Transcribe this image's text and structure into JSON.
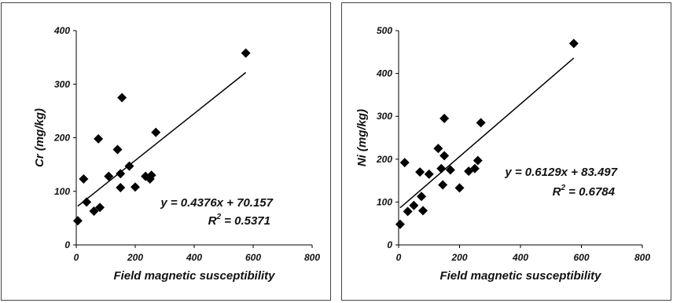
{
  "chart_data": [
    {
      "type": "scatter",
      "title": "",
      "xlabel": "Field magnetic susceptibility",
      "ylabel": "Cr (mg/kg)",
      "xlim": [
        0,
        800
      ],
      "ylim": [
        0,
        400
      ],
      "x_ticks": [
        "0",
        "200",
        "400",
        "600",
        "800"
      ],
      "y_ticks": [
        "0",
        "100",
        "200",
        "300",
        "400"
      ],
      "points": [
        {
          "x": 5,
          "y": 45
        },
        {
          "x": 25,
          "y": 123
        },
        {
          "x": 35,
          "y": 80
        },
        {
          "x": 60,
          "y": 63
        },
        {
          "x": 75,
          "y": 198
        },
        {
          "x": 80,
          "y": 70
        },
        {
          "x": 110,
          "y": 128
        },
        {
          "x": 140,
          "y": 178
        },
        {
          "x": 150,
          "y": 107
        },
        {
          "x": 150,
          "y": 133
        },
        {
          "x": 155,
          "y": 275
        },
        {
          "x": 180,
          "y": 147
        },
        {
          "x": 200,
          "y": 108
        },
        {
          "x": 235,
          "y": 128
        },
        {
          "x": 250,
          "y": 123
        },
        {
          "x": 255,
          "y": 130
        },
        {
          "x": 270,
          "y": 210
        },
        {
          "x": 575,
          "y": 358
        }
      ],
      "trendline": {
        "slope": 0.4376,
        "intercept": 70.157,
        "x_range": [
          5,
          575
        ]
      },
      "equation_line1_prefix": "y = 0.4376x + 70.157",
      "equation_r2_label": "R",
      "equation_r2_sup": "2",
      "equation_r2_value": " = 0.5371",
      "marker_color": "#000000",
      "grid": false
    },
    {
      "type": "scatter",
      "title": "",
      "xlabel": "Field magnetic susceptibility",
      "ylabel": "Ni (mg/kg)",
      "xlim": [
        0,
        800
      ],
      "ylim": [
        0,
        500
      ],
      "x_ticks": [
        "0",
        "200",
        "400",
        "600",
        "800"
      ],
      "y_ticks": [
        "0",
        "100",
        "200",
        "300",
        "400",
        "500"
      ],
      "points": [
        {
          "x": 5,
          "y": 48
        },
        {
          "x": 20,
          "y": 192
        },
        {
          "x": 30,
          "y": 78
        },
        {
          "x": 50,
          "y": 92
        },
        {
          "x": 70,
          "y": 170
        },
        {
          "x": 75,
          "y": 113
        },
        {
          "x": 80,
          "y": 80
        },
        {
          "x": 100,
          "y": 165
        },
        {
          "x": 130,
          "y": 225
        },
        {
          "x": 140,
          "y": 178
        },
        {
          "x": 145,
          "y": 140
        },
        {
          "x": 150,
          "y": 295
        },
        {
          "x": 150,
          "y": 208
        },
        {
          "x": 170,
          "y": 175
        },
        {
          "x": 200,
          "y": 133
        },
        {
          "x": 230,
          "y": 172
        },
        {
          "x": 250,
          "y": 178
        },
        {
          "x": 260,
          "y": 197
        },
        {
          "x": 270,
          "y": 285
        },
        {
          "x": 575,
          "y": 470
        }
      ],
      "trendline": {
        "slope": 0.6129,
        "intercept": 83.497,
        "x_range": [
          5,
          575
        ]
      },
      "equation_line1_prefix": "y = 0.6129x + 83.497",
      "equation_r2_label": "R",
      "equation_r2_sup": "2",
      "equation_r2_value": " = 0.6784",
      "marker_color": "#000000",
      "grid": false
    }
  ]
}
